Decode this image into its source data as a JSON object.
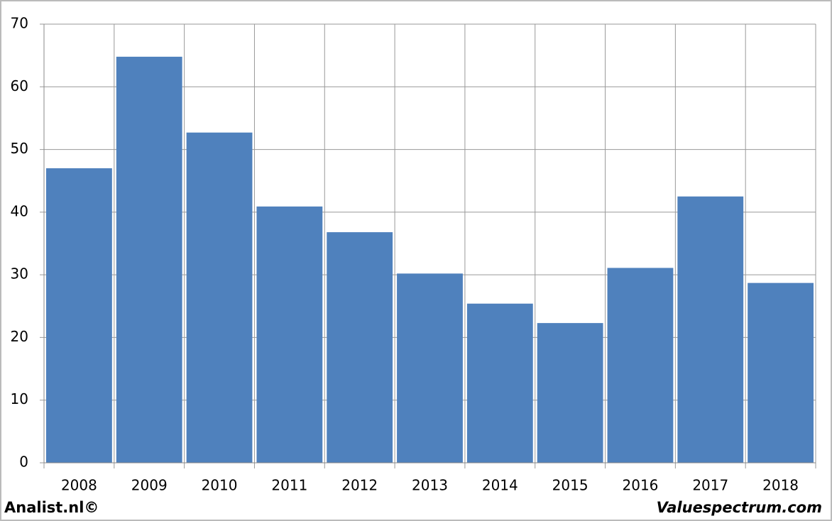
{
  "chart_data": {
    "type": "bar",
    "categories": [
      "2008",
      "2009",
      "2010",
      "2011",
      "2012",
      "2013",
      "2014",
      "2015",
      "2016",
      "2017",
      "2018"
    ],
    "values": [
      47,
      64.8,
      52.7,
      40.9,
      36.8,
      30.2,
      25.4,
      22.3,
      31.1,
      42.5,
      28.7
    ],
    "color": "#4f81bd",
    "ylim": [
      0,
      70
    ],
    "yticks": [
      0,
      10,
      20,
      30,
      40,
      50,
      60,
      70
    ],
    "grid": true
  },
  "footer": {
    "left": "Analist.nl©",
    "right": "Valuespectrum.com"
  }
}
